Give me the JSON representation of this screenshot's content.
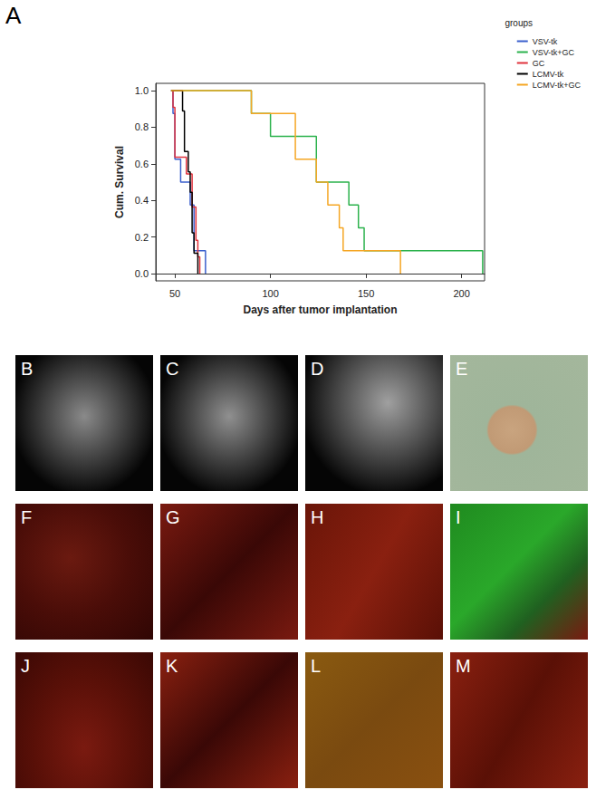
{
  "chart_data": {
    "type": "line",
    "panel_label": "A",
    "x_label": "Days after tumor implantation",
    "y_label": "Cum. Survival",
    "legend_title": "groups",
    "legend": "top-right",
    "xlim": [
      40,
      212
    ],
    "xticks": [
      50,
      100,
      150,
      200
    ],
    "ylim": [
      -0.04,
      1.04
    ],
    "yticks": [
      {
        "value": 0,
        "label": "0.0"
      },
      0.2,
      0.4,
      0.6,
      0.8,
      {
        "value": 1,
        "label": "1.0"
      }
    ],
    "grid": false,
    "line_style": "step",
    "series": [
      {
        "name": "VSV-tk",
        "color": "#3a5fcd",
        "x": [
          48,
          49,
          50,
          53,
          58,
          60,
          66
        ],
        "values": [
          1,
          0.875,
          0.625,
          0.5,
          0.375,
          0.125,
          0
        ]
      },
      {
        "name": "VSV-tk+GC",
        "color": "#2bb24c",
        "x": [
          48,
          90,
          100,
          124,
          141,
          146,
          149,
          211
        ],
        "values": [
          1,
          0.875,
          0.75,
          0.5,
          0.375,
          0.25,
          0.125,
          0
        ]
      },
      {
        "name": "GC",
        "color": "#e0323c",
        "x": [
          48,
          49,
          50,
          56,
          59,
          61,
          62,
          63
        ],
        "values": [
          1,
          0.909,
          0.636,
          0.545,
          0.364,
          0.182,
          0.091,
          0
        ]
      },
      {
        "name": "LCMV-tk",
        "color": "#000000",
        "x": [
          48,
          54,
          55,
          57,
          58,
          59,
          60,
          62
        ],
        "values": [
          1,
          0.889,
          0.667,
          0.556,
          0.444,
          0.222,
          0.111,
          0
        ]
      },
      {
        "name": "LCMV-tk+GC",
        "color": "#f5a623",
        "x": [
          48,
          90,
          113,
          124,
          130,
          136,
          138,
          168
        ],
        "values": [
          1,
          0.875,
          0.625,
          0.5,
          0.375,
          0.25,
          0.125,
          0
        ]
      }
    ]
  },
  "image_panels": [
    "B",
    "C",
    "D",
    "E",
    "F",
    "G",
    "H",
    "I",
    "J",
    "K",
    "L",
    "M"
  ]
}
